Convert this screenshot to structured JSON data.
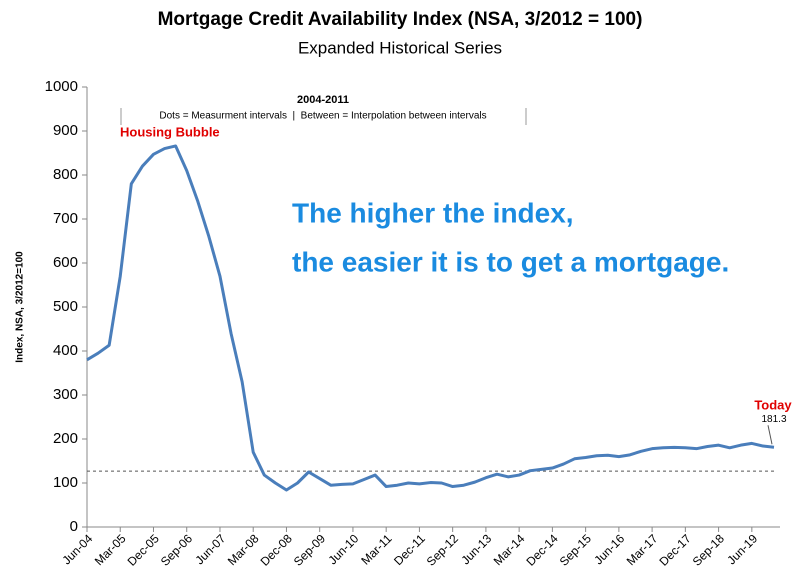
{
  "chart_data": {
    "type": "line",
    "title": "Mortgage Credit Availability Index (NSA, 3/2012 = 100)",
    "subtitle": "Expanded Historical Series",
    "y_label": "Index, NSA, 3/2012=100",
    "note_title": "2004-2011",
    "note_text": "Dots = Measurment intervals  |  Between = Interpolation between intervals",
    "annotation_bubble": "Housing Bubble",
    "annotation_today": "Today",
    "callout_lines": [
      "The higher the index,",
      "the easier it is to get a mortgage."
    ],
    "categories": [
      "Jun-04",
      null,
      null,
      "Mar-05",
      null,
      null,
      "Dec-05",
      null,
      null,
      "Sep-06",
      null,
      null,
      "Jun-07",
      null,
      null,
      "Mar-08",
      null,
      null,
      "Dec-08",
      null,
      null,
      "Sep-09",
      null,
      null,
      "Jun-10",
      null,
      null,
      "Mar-11",
      null,
      null,
      "Dec-11",
      null,
      null,
      "Sep-12",
      null,
      null,
      "Jun-13",
      null,
      null,
      "Mar-14",
      null,
      null,
      "Dec-14",
      null,
      null,
      "Sep-15",
      null,
      null,
      "Jun-16",
      null,
      null,
      "Mar-17",
      null,
      null,
      "Dec-17",
      null,
      null,
      "Sep-18",
      null,
      null,
      "Jun-19",
      null,
      null
    ],
    "series": [
      {
        "color": "#4a7ebb",
        "values": [
          380,
          395,
          413,
          570,
          780,
          820,
          847,
          860,
          866,
          810,
          740,
          660,
          570,
          440,
          330,
          170,
          118,
          100,
          84,
          100,
          125,
          110,
          95,
          97,
          98,
          108,
          118,
          92,
          95,
          100,
          98,
          101,
          100,
          92,
          95,
          102,
          112,
          120,
          114,
          118,
          128,
          131,
          134,
          143,
          155,
          158,
          162,
          163,
          160,
          164,
          172,
          178,
          180,
          181,
          180,
          178,
          183,
          186,
          180,
          186,
          190,
          184,
          181.3
        ]
      }
    ],
    "reference_line": 127,
    "ylim": [
      0,
      1000
    ],
    "yticks": [
      0,
      100,
      200,
      300,
      400,
      500,
      600,
      700,
      800,
      900,
      1000
    ],
    "grid": false
  }
}
